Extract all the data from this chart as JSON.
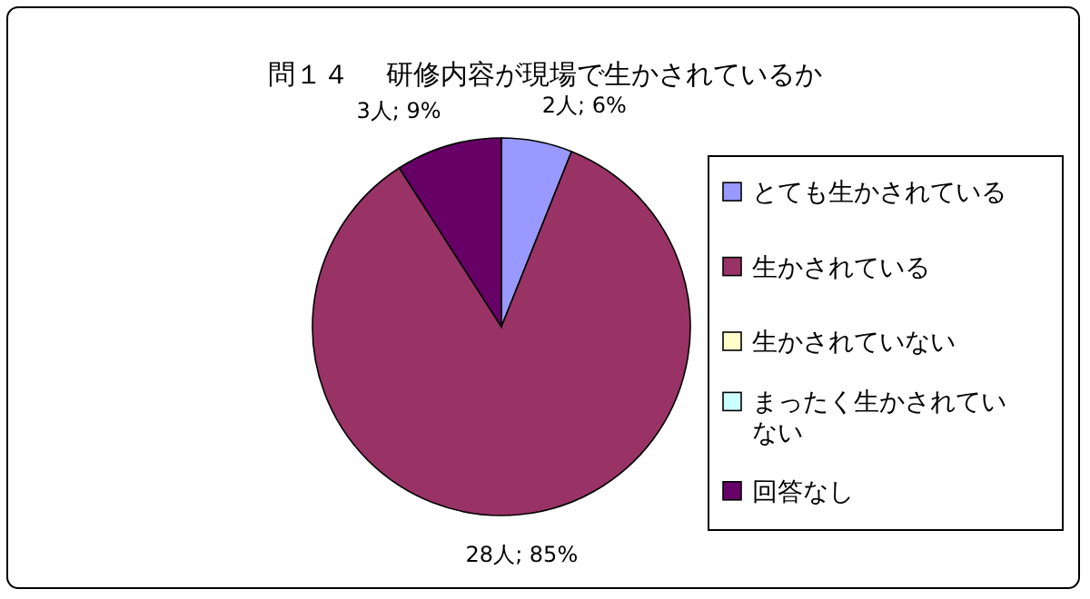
{
  "chart_data": {
    "type": "pie",
    "title": "問１４　 研修内容が現場で生かされているか",
    "categories": [
      "とても生かされている",
      "生かされている",
      "生かされていない",
      "まったく生かされていない",
      "回答なし"
    ],
    "values": [
      2,
      28,
      0,
      0,
      3
    ],
    "value_labels": [
      "2人; 6%",
      "28人; 85%",
      null,
      null,
      "3人; 9%"
    ],
    "colors": [
      "#9999ff",
      "#993366",
      "#ffffcc",
      "#ccffff",
      "#660066"
    ],
    "legend": "right"
  }
}
